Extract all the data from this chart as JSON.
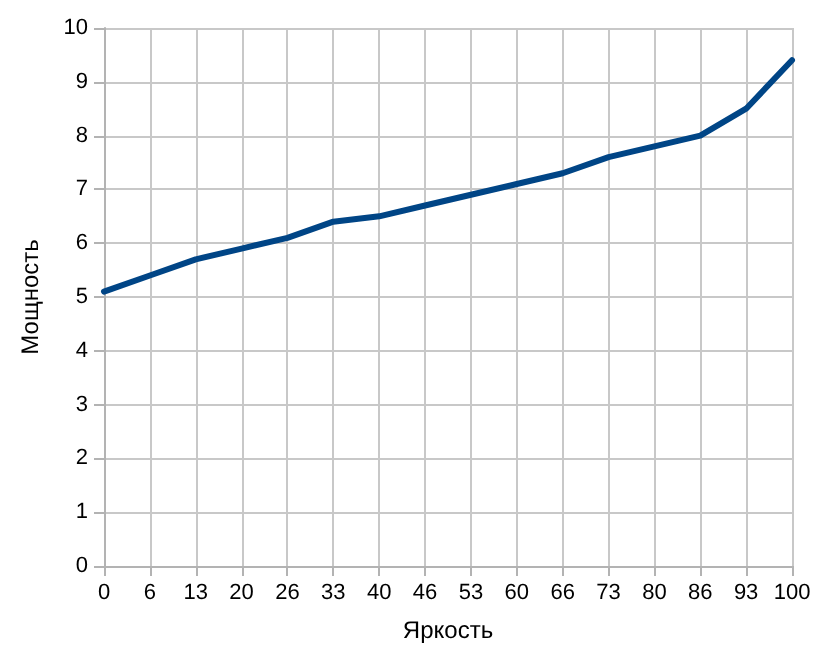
{
  "chart_data": {
    "type": "line",
    "xlabel": "Яркость",
    "ylabel": "Мощность",
    "categories": [
      "0",
      "6",
      "13",
      "20",
      "26",
      "33",
      "40",
      "46",
      "53",
      "60",
      "66",
      "73",
      "80",
      "86",
      "93",
      "100"
    ],
    "series": [
      {
        "color": "#004586",
        "values": [
          5.1,
          5.4,
          5.7,
          5.9,
          6.1,
          6.4,
          6.5,
          6.7,
          6.9,
          7.1,
          7.3,
          7.6,
          7.8,
          8.0,
          8.5,
          9.4
        ]
      }
    ],
    "ylim": [
      0,
      10
    ],
    "yticks": [
      0,
      1,
      2,
      3,
      4,
      5,
      6,
      7,
      8,
      9,
      10
    ],
    "grid": true,
    "marker": "none",
    "line_style": "solid"
  }
}
